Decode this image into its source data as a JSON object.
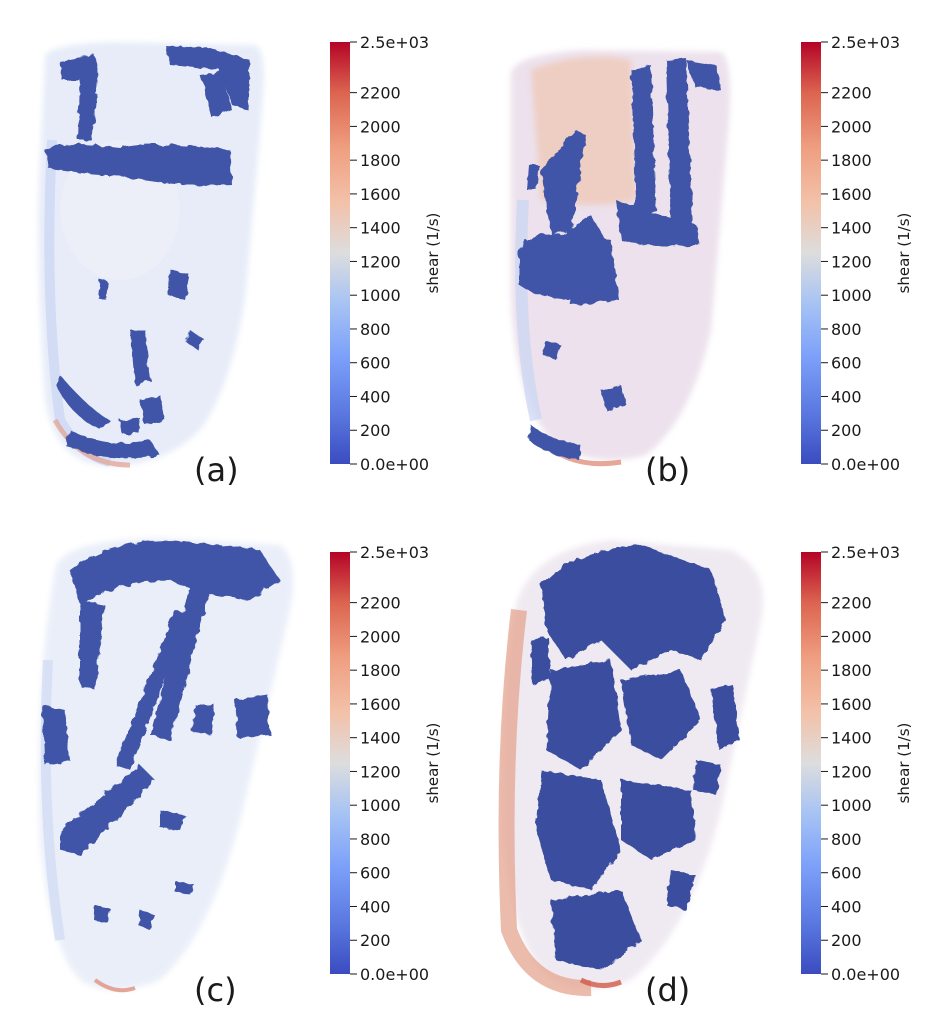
{
  "colors": {
    "low": "#3b4cc0",
    "mid": "#dddddd",
    "high": "#b40426",
    "surface_blue": "#4358a8",
    "surface_dark": "#33448f",
    "volume_light": "#c8d6f2",
    "volume_warm": "#f1c7b3"
  },
  "colorbar": {
    "title": "shear (1/s)",
    "min": 0,
    "max": 2500,
    "ticks": [
      {
        "value": 2500,
        "label": "2.5e+03"
      },
      {
        "value": 2200,
        "label": "2200"
      },
      {
        "value": 2000,
        "label": "2000"
      },
      {
        "value": 1800,
        "label": "1800"
      },
      {
        "value": 1600,
        "label": "1600"
      },
      {
        "value": 1400,
        "label": "1400"
      },
      {
        "value": 1200,
        "label": "1200"
      },
      {
        "value": 1000,
        "label": "1000"
      },
      {
        "value": 800,
        "label": "800"
      },
      {
        "value": 600,
        "label": "600"
      },
      {
        "value": 400,
        "label": "400"
      },
      {
        "value": 200,
        "label": "200"
      },
      {
        "value": 0,
        "label": "0.0e+00"
      }
    ]
  },
  "panels": [
    {
      "id": "a",
      "label": "(a)"
    },
    {
      "id": "b",
      "label": "(b)"
    },
    {
      "id": "c",
      "label": "(c)"
    },
    {
      "id": "d",
      "label": "(d)"
    }
  ]
}
